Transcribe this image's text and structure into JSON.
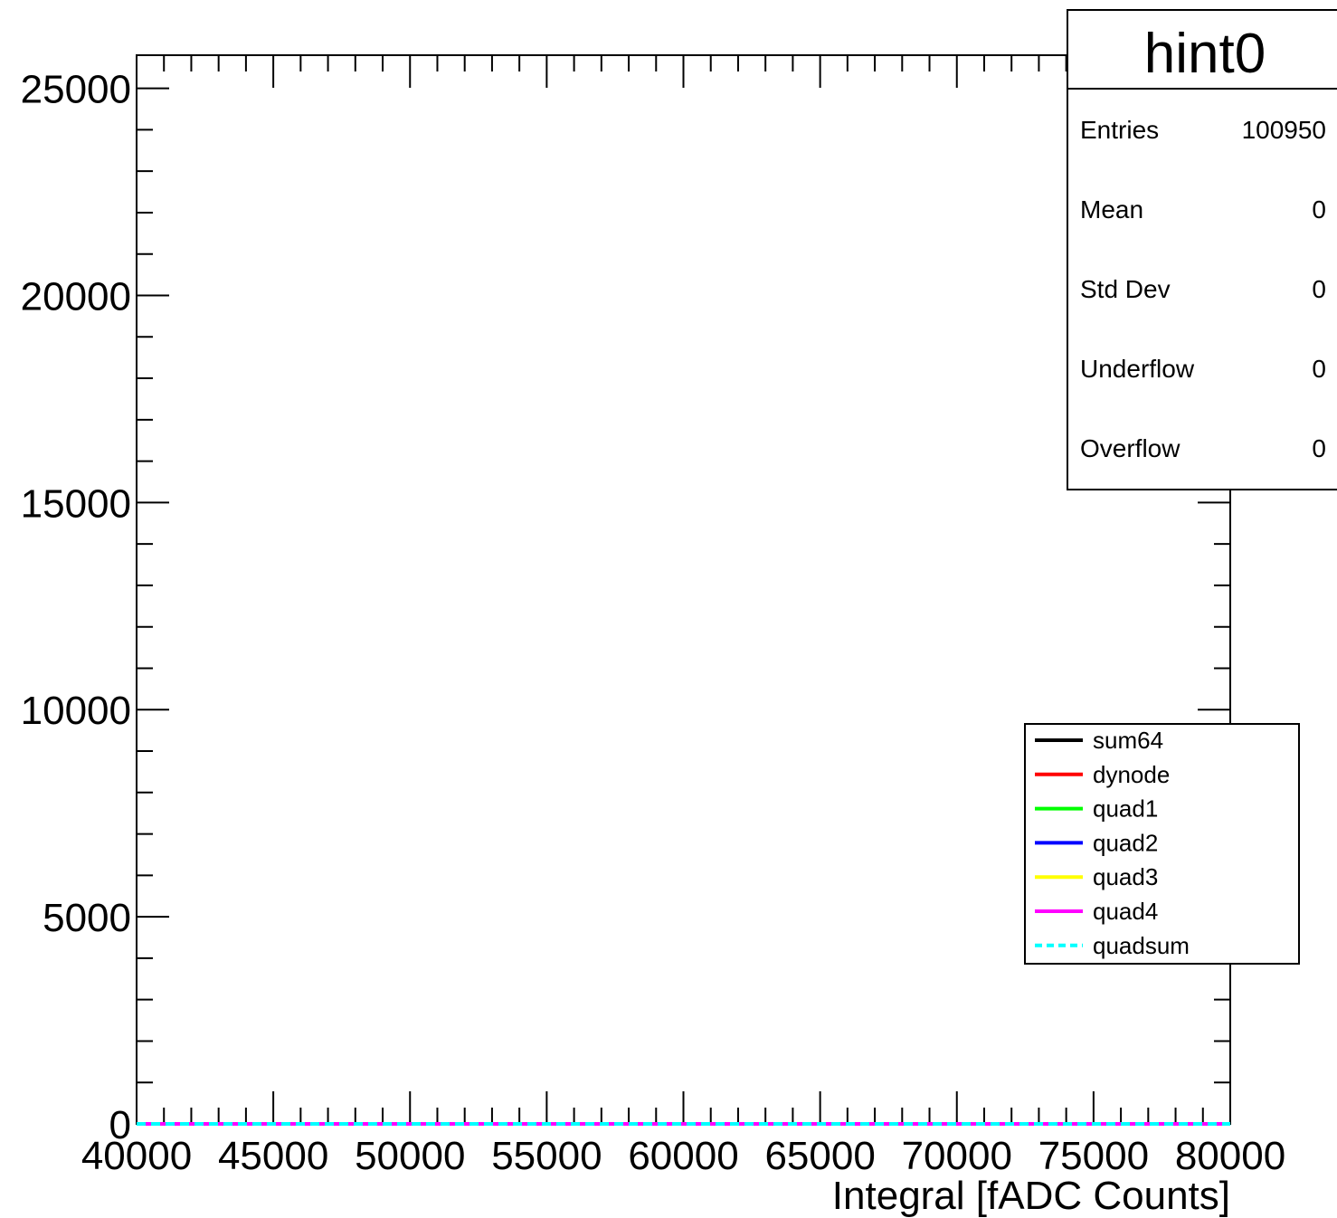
{
  "chart_data": {
    "type": "line",
    "title": "",
    "xlabel": "Integral [fADC Counts]",
    "ylabel": "",
    "xlim": [
      40000,
      80000
    ],
    "ylim": [
      0,
      25800
    ],
    "x_ticks": [
      40000,
      45000,
      50000,
      55000,
      60000,
      65000,
      70000,
      75000,
      80000
    ],
    "y_ticks": [
      0,
      5000,
      10000,
      15000,
      20000,
      25000
    ],
    "grid": false,
    "legend_position": "right",
    "series": [
      {
        "name": "sum64",
        "color": "#000000",
        "dashed": false,
        "x": [
          40000,
          80000
        ],
        "y": [
          0,
          0
        ]
      },
      {
        "name": "dynode",
        "color": "#ff0000",
        "dashed": false,
        "x": [
          40000,
          80000
        ],
        "y": [
          0,
          0
        ]
      },
      {
        "name": "quad1",
        "color": "#00ff00",
        "dashed": false,
        "x": [
          40000,
          80000
        ],
        "y": [
          0,
          0
        ]
      },
      {
        "name": "quad2",
        "color": "#0000ff",
        "dashed": false,
        "x": [
          40000,
          80000
        ],
        "y": [
          0,
          0
        ]
      },
      {
        "name": "quad3",
        "color": "#ffff00",
        "dashed": false,
        "x": [
          40000,
          80000
        ],
        "y": [
          0,
          0
        ]
      },
      {
        "name": "quad4",
        "color": "#ff00ff",
        "dashed": false,
        "x": [
          40000,
          80000
        ],
        "y": [
          0,
          0
        ]
      },
      {
        "name": "quadsum",
        "color": "#00ffff",
        "dashed": true,
        "x": [
          40000,
          80000
        ],
        "y": [
          0,
          0
        ]
      }
    ]
  },
  "stats_box": {
    "title": "hint0",
    "rows": [
      {
        "label": "Entries",
        "value": "100950"
      },
      {
        "label": "Mean",
        "value": "0"
      },
      {
        "label": "Std Dev",
        "value": "0"
      },
      {
        "label": "Underflow",
        "value": "0"
      },
      {
        "label": "Overflow",
        "value": "0"
      }
    ]
  }
}
